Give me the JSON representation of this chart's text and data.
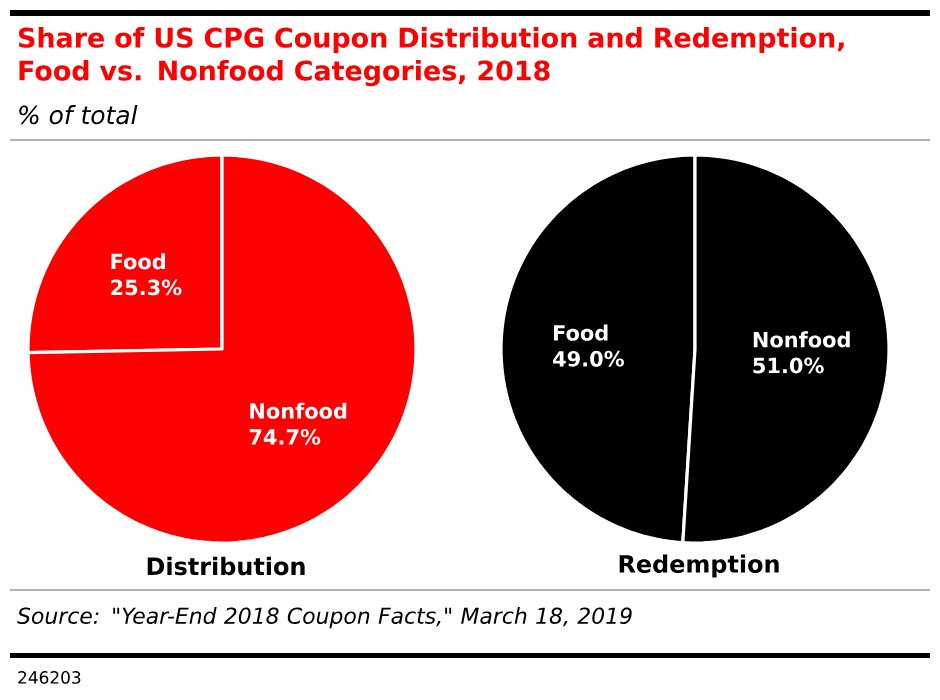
{
  "chart_data": [
    {
      "type": "pie",
      "title": "Share of US CPG Coupon Distribution and Redemption, Food vs. Nonfood Categories, 2018",
      "subtitle": "% of total",
      "xlabel": "Distribution",
      "categories": [
        "Food",
        "Nonfood"
      ],
      "values": [
        25.3,
        74.7
      ],
      "value_labels": [
        "25.3%",
        "74.7%"
      ],
      "colors": [
        "#ff0000",
        "#ff0000"
      ]
    },
    {
      "type": "pie",
      "xlabel": "Redemption",
      "categories": [
        "Food",
        "Nonfood"
      ],
      "values": [
        49.0,
        51.0
      ],
      "value_labels": [
        "49.0%",
        "51.0%"
      ],
      "colors": [
        "#000000",
        "#000000"
      ],
      "annotations": [
        "Source: \"Year-End 2018 Coupon Facts,\" March 18, 2019",
        "246203"
      ]
    }
  ]
}
